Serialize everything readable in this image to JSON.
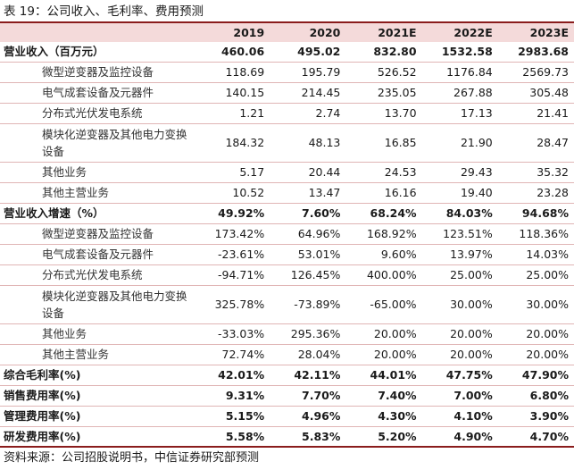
{
  "caption": "表 19：公司收入、毛利率、费用预测",
  "columns": [
    "2019",
    "2020",
    "2021E",
    "2022E",
    "2023E"
  ],
  "rows": [
    {
      "label": "营业收入（百万元）",
      "bold": true,
      "values": [
        "460.06",
        "495.02",
        "832.80",
        "1532.58",
        "2983.68"
      ],
      "h": 22
    },
    {
      "label": "微型逆变器及监控设备",
      "bold": false,
      "values": [
        "118.69",
        "195.79",
        "526.52",
        "1176.84",
        "2569.73"
      ],
      "h": 23
    },
    {
      "label": "电气成套设备及元器件",
      "bold": false,
      "values": [
        "140.15",
        "214.45",
        "235.05",
        "267.88",
        "305.48"
      ],
      "h": 23
    },
    {
      "label": "分布式光伏发电系统",
      "bold": false,
      "values": [
        "1.21",
        "2.74",
        "13.70",
        "17.13",
        "21.41"
      ],
      "h": 23
    },
    {
      "label": "模块化逆变器及其他电力变换设备",
      "bold": false,
      "values": [
        "184.32",
        "48.13",
        "16.85",
        "21.90",
        "28.47"
      ],
      "h": 43
    },
    {
      "label": "其他业务",
      "bold": false,
      "values": [
        "5.17",
        "20.44",
        "24.53",
        "29.43",
        "35.32"
      ],
      "h": 23
    },
    {
      "label": "其他主营业务",
      "bold": false,
      "values": [
        "10.52",
        "13.47",
        "16.16",
        "19.40",
        "23.28"
      ],
      "h": 23
    },
    {
      "label": "营业收入增速（%）",
      "bold": true,
      "values": [
        "49.92%",
        "7.60%",
        "68.24%",
        "84.03%",
        "94.68%"
      ],
      "h": 23
    },
    {
      "label": "微型逆变器及监控设备",
      "bold": false,
      "values": [
        "173.42%",
        "64.96%",
        "168.92%",
        "123.51%",
        "118.36%"
      ],
      "h": 23
    },
    {
      "label": "电气成套设备及元器件",
      "bold": false,
      "values": [
        "-23.61%",
        "53.01%",
        "9.60%",
        "13.97%",
        "14.03%"
      ],
      "h": 23
    },
    {
      "label": "分布式光伏发电系统",
      "bold": false,
      "values": [
        "-94.71%",
        "126.45%",
        "400.00%",
        "25.00%",
        "25.00%"
      ],
      "h": 23
    },
    {
      "label": "模块化逆变器及其他电力变换设备",
      "bold": false,
      "values": [
        "325.78%",
        "-73.89%",
        "-65.00%",
        "30.00%",
        "30.00%"
      ],
      "h": 43
    },
    {
      "label": "其他业务",
      "bold": false,
      "values": [
        "-33.03%",
        "295.36%",
        "20.00%",
        "20.00%",
        "20.00%"
      ],
      "h": 23
    },
    {
      "label": "其他主营业务",
      "bold": false,
      "values": [
        "72.74%",
        "28.04%",
        "20.00%",
        "20.00%",
        "20.00%"
      ],
      "h": 23
    },
    {
      "label": "综合毛利率(%)",
      "bold": true,
      "values": [
        "42.01%",
        "42.11%",
        "44.01%",
        "47.75%",
        "47.90%"
      ],
      "h": 23
    },
    {
      "label": "销售费用率(%)",
      "bold": true,
      "values": [
        "9.31%",
        "7.70%",
        "7.40%",
        "7.00%",
        "6.80%"
      ],
      "h": 23
    },
    {
      "label": "管理费用率(%)",
      "bold": true,
      "values": [
        "5.15%",
        "4.96%",
        "4.30%",
        "4.10%",
        "3.90%"
      ],
      "h": 23
    },
    {
      "label": "研发费用率(%)",
      "bold": true,
      "values": [
        "5.58%",
        "5.83%",
        "5.20%",
        "4.90%",
        "4.70%"
      ],
      "h": 23
    }
  ],
  "source": "资料来源：公司招股说明书，中信证券研究部预测",
  "colors": {
    "accent_rule": "#8a1c1c",
    "header_fill": "#f4dada",
    "row_separator": "#e0b5b5"
  }
}
